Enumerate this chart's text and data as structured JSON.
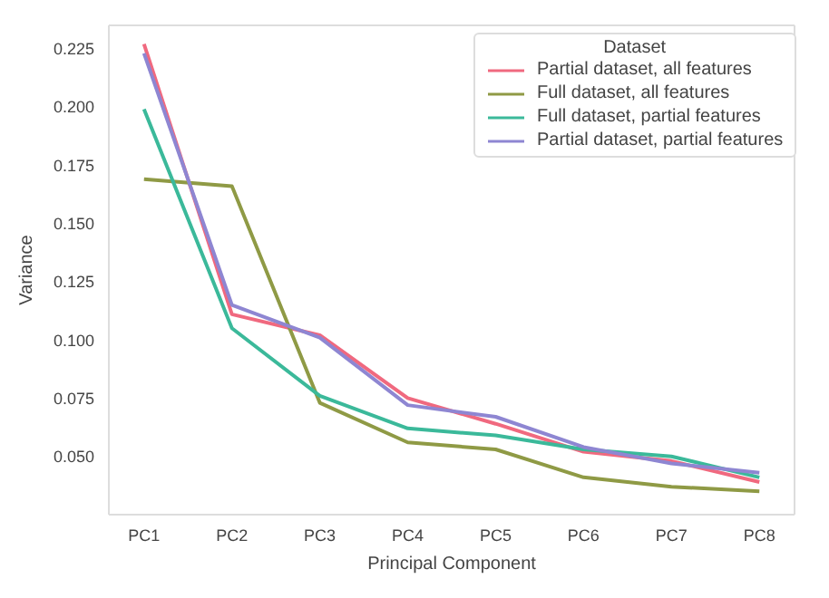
{
  "chart_data": {
    "type": "line",
    "xlabel": "Principal Component",
    "ylabel": "Variance",
    "legend_title": "Dataset",
    "legend": "top right",
    "grid": false,
    "marker": "none",
    "line_style": "solid",
    "categories": [
      "PC1",
      "PC2",
      "PC3",
      "PC4",
      "PC5",
      "PC6",
      "PC7",
      "PC8"
    ],
    "ylim": [
      0.025,
      0.235
    ],
    "yticks": [
      {
        "value": 0.05,
        "label": "0.050"
      },
      {
        "value": 0.075,
        "label": "0.075"
      },
      {
        "value": 0.1,
        "label": "0.100"
      },
      {
        "value": 0.125,
        "label": "0.125"
      },
      {
        "value": 0.15,
        "label": "0.150"
      },
      {
        "value": 0.175,
        "label": "0.175"
      },
      {
        "value": 0.2,
        "label": "0.200"
      },
      {
        "value": 0.225,
        "label": "0.225"
      }
    ],
    "series": [
      {
        "name": "Partial dataset, all features",
        "color": "#f0697f",
        "values": [
          0.227,
          0.111,
          0.102,
          0.075,
          0.064,
          0.052,
          0.048,
          0.039
        ]
      },
      {
        "name": "Full dataset, all features",
        "color": "#8f9a45",
        "values": [
          0.169,
          0.166,
          0.073,
          0.056,
          0.053,
          0.041,
          0.037,
          0.035
        ]
      },
      {
        "name": "Full dataset, partial features",
        "color": "#3bb99a",
        "values": [
          0.199,
          0.105,
          0.076,
          0.062,
          0.059,
          0.053,
          0.05,
          0.041
        ]
      },
      {
        "name": "Partial dataset, partial features",
        "color": "#8e86d2",
        "values": [
          0.223,
          0.115,
          0.101,
          0.072,
          0.067,
          0.054,
          0.047,
          0.043
        ]
      }
    ]
  }
}
